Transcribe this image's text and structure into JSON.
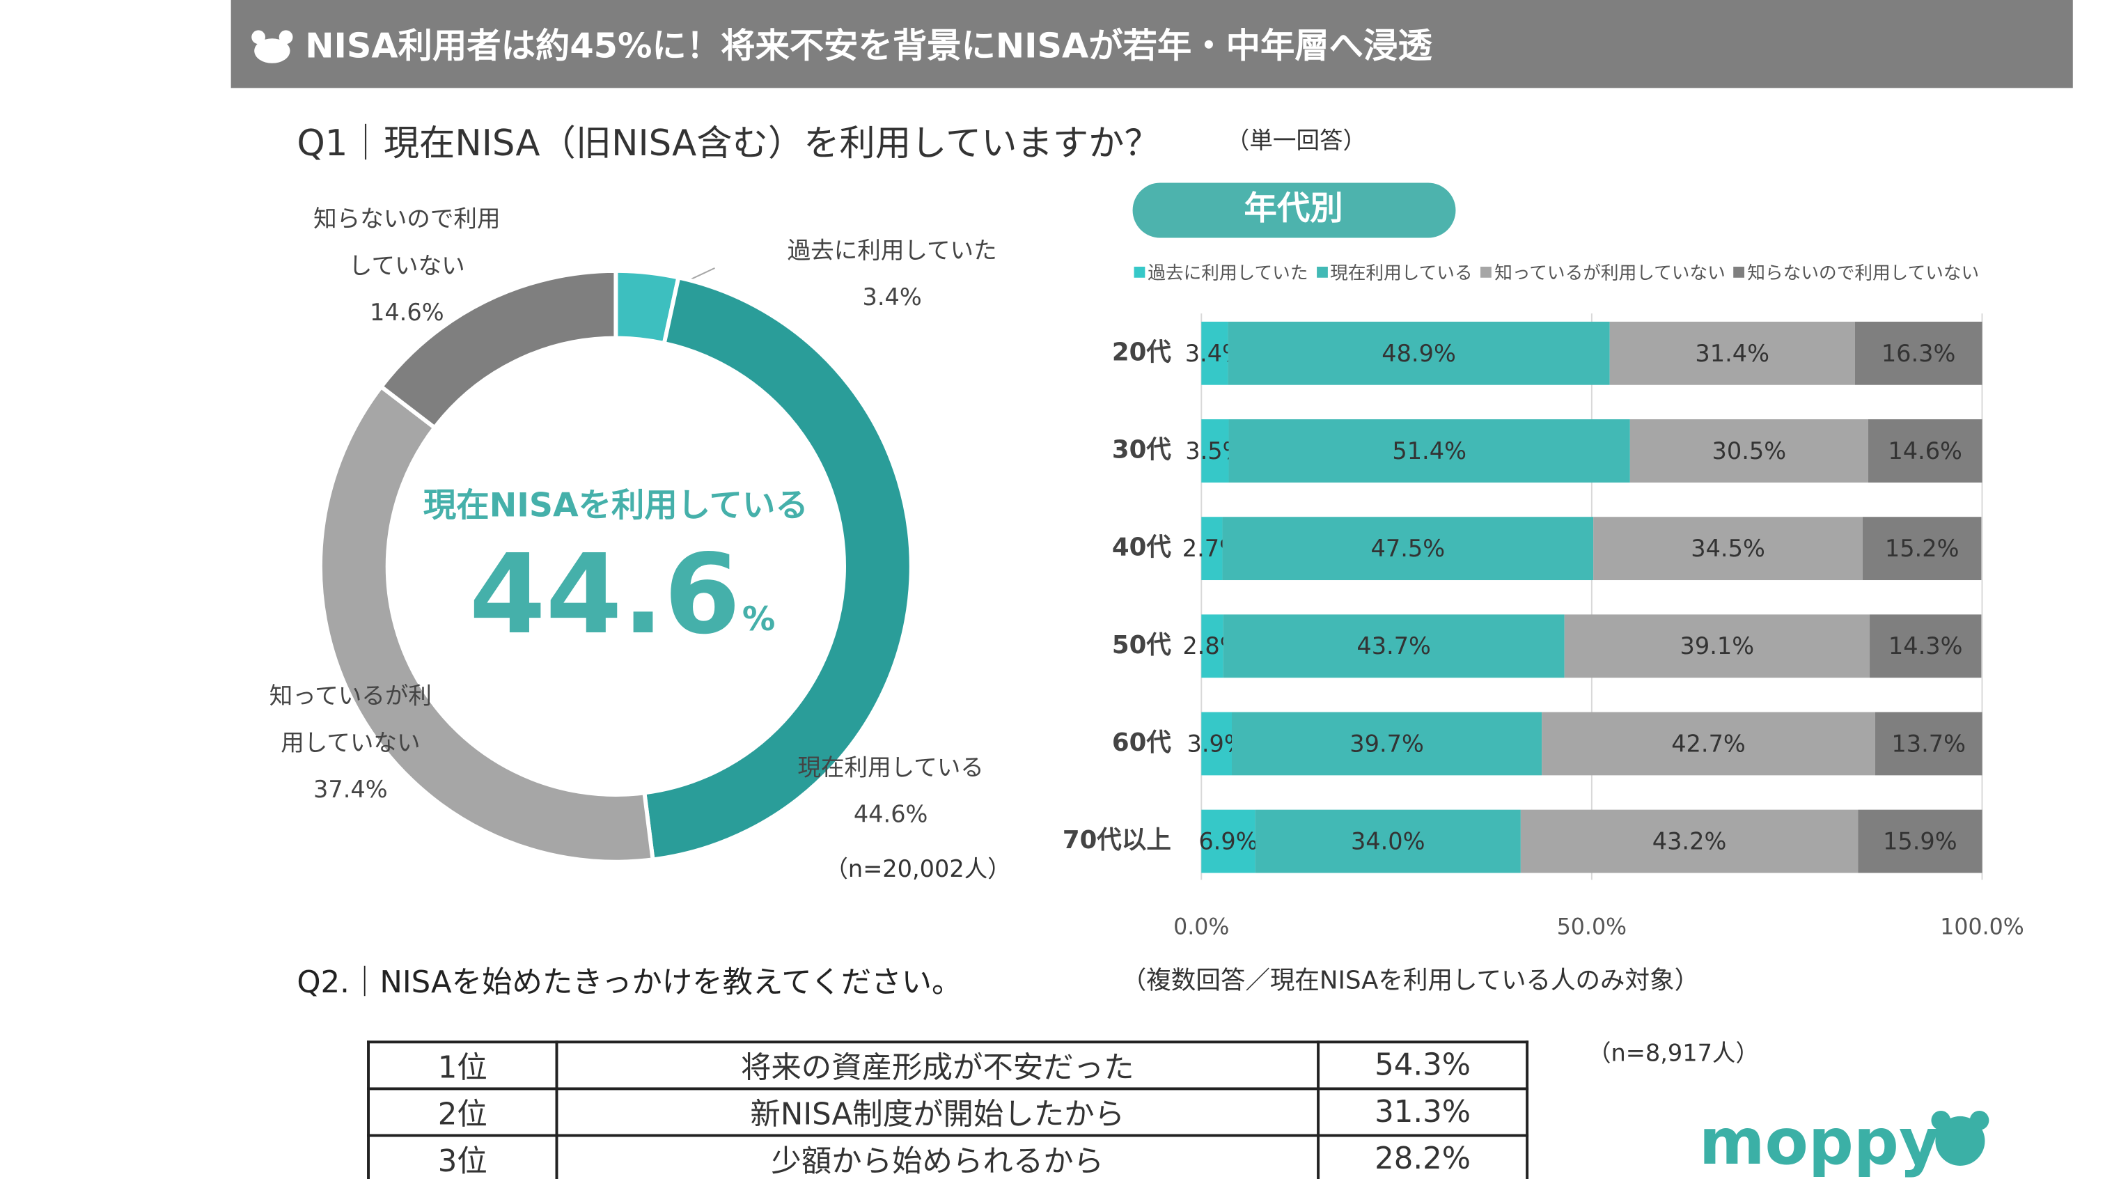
{
  "header": {
    "title": "NISA利用者は約45%に！将来不安を背景にNISAが若年・中年層へ浸透"
  },
  "q1": {
    "question": "Q1｜現在NISA（旧NISA含む）を利用していますか？",
    "note": "（単一回答）",
    "sample": "（n=20,002人）"
  },
  "chart_data": [
    {
      "type": "pie",
      "donut": true,
      "categories": [
        "過去に利用していた",
        "現在利用している",
        "知っているが利\n用していない",
        "知らないので利用\nしていない"
      ],
      "values": [
        3.4,
        44.6,
        37.4,
        14.6
      ],
      "value_labels": [
        "3.4%",
        "44.6%",
        "37.4%",
        "14.6%"
      ],
      "colors": [
        "#3dbfbf",
        "#2a9d99",
        "#a6a6a6",
        "#7f7f7f"
      ],
      "center_label": "現在NISAを利用している",
      "center_value": 44.6,
      "center_unit": "%"
    },
    {
      "type": "bar",
      "orientation": "horizontal",
      "stacked": true,
      "title": "年代別",
      "categories": [
        "20代",
        "30代",
        "40代",
        "50代",
        "60代",
        "70代以上"
      ],
      "series": [
        {
          "name": "過去に利用していた",
          "color": "#36c8c8",
          "values": [
            3.4,
            3.5,
            2.7,
            2.8,
            3.9,
            6.9
          ],
          "value_labels": [
            "3.4%",
            "3.5%",
            "2.7%",
            "2.8%",
            "3.9%",
            "6.9%"
          ]
        },
        {
          "name": "現在利用している",
          "color": "#42b9b5",
          "values": [
            48.9,
            51.4,
            47.5,
            43.7,
            39.7,
            34.0
          ],
          "value_labels": [
            "48.9%",
            "51.4%",
            "47.5%",
            "43.7%",
            "39.7%",
            "34.0%"
          ]
        },
        {
          "name": "知っているが利用していない",
          "color": "#a6a6a6",
          "values": [
            31.4,
            30.5,
            34.5,
            39.1,
            42.7,
            43.2
          ],
          "value_labels": [
            "31.4%",
            "30.5%",
            "34.5%",
            "39.1%",
            "42.7%",
            "43.2%"
          ]
        },
        {
          "name": "知らないので利用していない",
          "color": "#7f7f7f",
          "values": [
            16.3,
            14.6,
            15.2,
            14.3,
            13.7,
            15.9
          ],
          "value_labels": [
            "16.3%",
            "14.6%",
            "15.2%",
            "14.3%",
            "13.7%",
            "15.9%"
          ]
        }
      ],
      "xlim": [
        0,
        100
      ],
      "xticks": [
        {
          "value": 0,
          "label": "0.0%"
        },
        {
          "value": 50,
          "label": "50.0%"
        },
        {
          "value": 100,
          "label": "100.0%"
        }
      ],
      "grid": true
    }
  ],
  "q2": {
    "question": "Q2.｜NISAを始めたきっかけを教えてください。",
    "note": "（複数回答／現在NISAを利用している人のみ対象）",
    "sample": "（n=8,917人）"
  },
  "table": {
    "rows": [
      [
        "1位",
        "将来の資産形成が不安だった",
        "54.3%"
      ],
      [
        "2位",
        "新NISA制度が開始したから",
        "31.3%"
      ],
      [
        "3位",
        "少額から始められるから",
        "28.2%"
      ]
    ]
  },
  "logo": "moppy"
}
